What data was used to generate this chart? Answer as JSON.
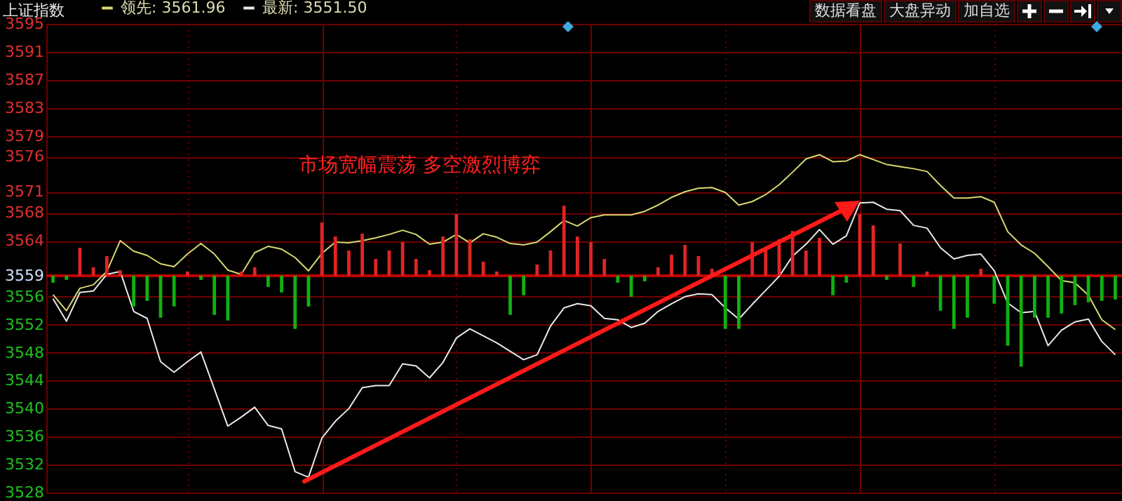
{
  "chart_data": {
    "type": "line",
    "title": "上证指数",
    "annotations": [
      "市场宽幅震荡  多空激烈博弈",
      "数据看盘",
      "大盘异动",
      "加自选"
    ],
    "categories": [
      null,
      null,
      null,
      null,
      null,
      null,
      null,
      null,
      null,
      null,
      null,
      null,
      null,
      null,
      null,
      null,
      null,
      null,
      null,
      null,
      null,
      null,
      null,
      null,
      null,
      null,
      null,
      null,
      null,
      null,
      null,
      null,
      null,
      null,
      null,
      null,
      null,
      null,
      null,
      null,
      null,
      null,
      null,
      null,
      null,
      null,
      null,
      null,
      null,
      null,
      null,
      null,
      null,
      null,
      null,
      null,
      null,
      null,
      null,
      null,
      null,
      null,
      null,
      null,
      null,
      null,
      null,
      null,
      null,
      null,
      null,
      null,
      null,
      null,
      null,
      null,
      null,
      null,
      null,
      null
    ],
    "ylim": [
      3528,
      3595
    ],
    "yticks": [
      3528,
      3532,
      3536,
      3540,
      3544,
      3548,
      3552,
      3556,
      3559,
      3564,
      3568,
      3571,
      3576,
      3579,
      3583,
      3587,
      3591,
      3595
    ],
    "tick_labels": "y",
    "grid": true,
    "legend": "top left",
    "ref_lines": [
      {
        "axis": "y",
        "value": 3559,
        "color": "#c00000"
      }
    ],
    "series": [
      {
        "type": "bar",
        "base": [
          3559,
          3559,
          3559,
          3559,
          3559,
          3559,
          3559,
          3559,
          3559,
          3559,
          3559,
          3559,
          3559,
          3559,
          3559,
          3559,
          3559,
          3559,
          3559,
          3559,
          3559,
          3559,
          3559,
          3559,
          3559,
          3559,
          3559,
          3559,
          3559,
          3559,
          3559,
          3559,
          3559,
          3559,
          3559,
          3559,
          3559,
          3559,
          3559,
          3559,
          3559,
          3559,
          3559,
          3559,
          3559,
          3559,
          3559,
          3559,
          3559,
          3559,
          3559,
          3559,
          3559,
          3559,
          3559,
          3559,
          3559,
          3559,
          3559,
          3559,
          3559,
          3559,
          3559,
          3559,
          3559,
          3559,
          3559,
          3559,
          3559,
          3559,
          3559,
          3559,
          3559,
          3559,
          3559,
          3559,
          3559,
          3559,
          3559,
          3559
        ],
        "values": [
          -1.0,
          -0.6,
          4.0,
          1.2,
          2.8,
          0.8,
          -4.4,
          -3.6,
          -6.0,
          -4.4,
          0.6,
          -0.6,
          -5.6,
          -6.4,
          0.6,
          1.2,
          -1.6,
          -2.4,
          -7.6,
          -4.4,
          7.6,
          5.6,
          3.6,
          6.0,
          2.4,
          3.6,
          4.8,
          2.4,
          0.8,
          5.6,
          8.8,
          5.2,
          2.0,
          0.6,
          -5.6,
          -2.8,
          1.6,
          3.6,
          10.0,
          5.6,
          4.8,
          2.4,
          -1.0,
          -3.0,
          -0.8,
          1.2,
          3.0,
          4.4,
          2.8,
          1.0,
          -7.6,
          -7.6,
          4.8,
          4.0,
          5.2,
          6.4,
          3.6,
          5.4,
          -2.8,
          -1.0,
          8.8,
          7.2,
          -0.6,
          4.6,
          -1.6,
          0.6,
          -5.0,
          -7.6,
          -6.0,
          1.0,
          -4.0,
          -10.0,
          -13.0,
          -6.0,
          -6.0,
          -5.4,
          -4.2,
          -3.8,
          -3.6,
          -3.4
        ],
        "colors": [
          "#10b010",
          "#10b010",
          "#e02424",
          "#e02424",
          "#e02424",
          "#e02424",
          "#10b010",
          "#10b010",
          "#10b010",
          "#10b010",
          "#e02424",
          "#10b010",
          "#10b010",
          "#10b010",
          "#e02424",
          "#e02424",
          "#10b010",
          "#10b010",
          "#10b010",
          "#10b010",
          "#e02424",
          "#e02424",
          "#e02424",
          "#e02424",
          "#e02424",
          "#e02424",
          "#e02424",
          "#e02424",
          "#e02424",
          "#e02424",
          "#e02424",
          "#e02424",
          "#e02424",
          "#e02424",
          "#10b010",
          "#10b010",
          "#e02424",
          "#e02424",
          "#e02424",
          "#e02424",
          "#e02424",
          "#e02424",
          "#10b010",
          "#10b010",
          "#10b010",
          "#e02424",
          "#e02424",
          "#e02424",
          "#e02424",
          "#e02424",
          "#10b010",
          "#10b010",
          "#e02424",
          "#e02424",
          "#e02424",
          "#e02424",
          "#e02424",
          "#e02424",
          "#10b010",
          "#10b010",
          "#e02424",
          "#e02424",
          "#10b010",
          "#e02424",
          "#10b010",
          "#e02424",
          "#10b010",
          "#10b010",
          "#10b010",
          "#e02424",
          "#10b010",
          "#10b010",
          "#10b010",
          "#10b010",
          "#10b010",
          "#10b010",
          "#10b010",
          "#10b010",
          "#10b010",
          "#10b010"
        ]
      },
      {
        "name": "领先: 3561.96",
        "color": "#d8d870",
        "values": [
          3556.3,
          3554.0,
          3557.2,
          3557.7,
          3559.6,
          3564.0,
          3562.5,
          3561.9,
          3560.7,
          3560.3,
          3562.1,
          3563.6,
          3562.1,
          3559.8,
          3559.2,
          3562.3,
          3563.2,
          3562.8,
          3561.6,
          3559.7,
          3562.2,
          3563.8,
          3563.7,
          3564.0,
          3564.4,
          3564.9,
          3565.5,
          3564.9,
          3563.5,
          3563.8,
          3564.9,
          3563.7,
          3565.0,
          3564.5,
          3563.6,
          3563.4,
          3563.8,
          3565.3,
          3566.9,
          3566.1,
          3567.3,
          3567.7,
          3567.7,
          3567.7,
          3568.2,
          3569.1,
          3570.2,
          3571.0,
          3571.5,
          3571.6,
          3570.9,
          3569.1,
          3569.6,
          3570.6,
          3572.0,
          3573.8,
          3575.7,
          3576.3,
          3575.3,
          3575.4,
          3576.3,
          3575.6,
          3574.9,
          3574.6,
          3574.3,
          3573.9,
          3571.9,
          3570.1,
          3570.1,
          3570.3,
          3569.5,
          3565.3,
          3563.4,
          3562.2,
          3560.3,
          3558.3,
          3558.0,
          3556.2,
          3552.7,
          3551.3
        ]
      },
      {
        "name": "最新: 3551.50",
        "color": "#e8e8e8",
        "values": [
          3555.7,
          3552.5,
          3556.6,
          3556.8,
          3559.2,
          3559.6,
          3553.9,
          3552.9,
          3546.7,
          3545.2,
          3546.7,
          3548.1,
          3542.8,
          3537.5,
          3538.8,
          3540.2,
          3537.6,
          3537.1,
          3531.0,
          3530.2,
          3535.8,
          3538.2,
          3540.0,
          3543.0,
          3543.3,
          3543.3,
          3546.4,
          3546.1,
          3544.4,
          3546.6,
          3550.1,
          3551.4,
          3550.4,
          3549.4,
          3548.2,
          3547.0,
          3547.7,
          3551.8,
          3554.4,
          3555.0,
          3554.7,
          3552.9,
          3552.7,
          3551.6,
          3552.2,
          3553.9,
          3555.0,
          3556.0,
          3556.4,
          3556.3,
          3554.4,
          3552.8,
          3554.9,
          3556.9,
          3558.9,
          3561.8,
          3563.5,
          3565.6,
          3563.5,
          3564.7,
          3569.4,
          3569.5,
          3568.5,
          3568.3,
          3566.2,
          3565.8,
          3563.0,
          3561.4,
          3561.9,
          3562.1,
          3559.7,
          3555.1,
          3553.7,
          3553.9,
          3549.0,
          3551.2,
          3552.4,
          3552.8,
          3549.6,
          3547.7
        ]
      }
    ]
  }
}
